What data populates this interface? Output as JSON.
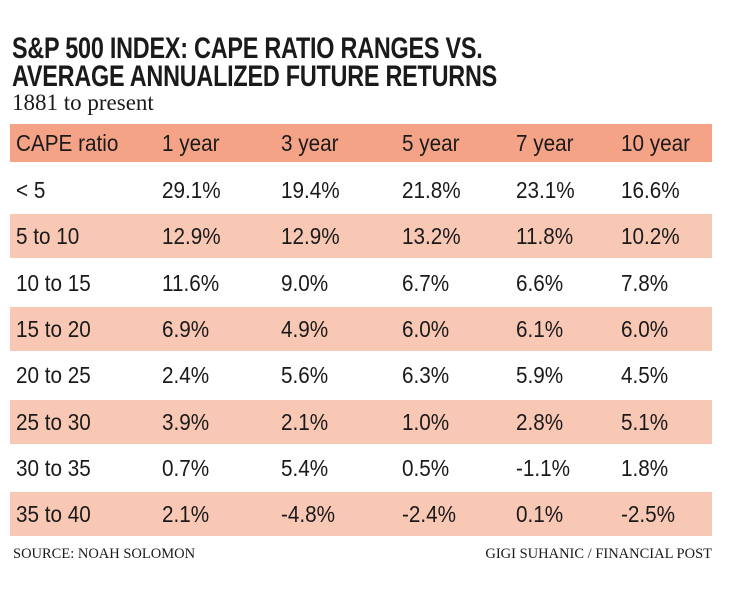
{
  "header": {
    "title_lines": [
      "S&P 500 INDEX: CAPE RATIO RANGES VS.",
      "AVERAGE ANNUALIZED FUTURE RETURNS"
    ],
    "subtitle": "1881 to present"
  },
  "table": {
    "columns": [
      "CAPE ratio",
      "1 year",
      "3 year",
      "5 year",
      "7 year",
      "10 year"
    ],
    "rows": [
      [
        "< 5",
        "29.1%",
        "19.4%",
        "21.8%",
        "23.1%",
        "16.6%"
      ],
      [
        "5 to 10",
        "12.9%",
        "12.9%",
        "13.2%",
        "11.8%",
        "10.2%"
      ],
      [
        "10 to 15",
        "11.6%",
        "9.0%",
        "6.7%",
        "6.6%",
        "7.8%"
      ],
      [
        "15 to 20",
        "6.9%",
        "4.9%",
        "6.0%",
        "6.1%",
        "6.0%"
      ],
      [
        "20 to 25",
        "2.4%",
        "5.6%",
        "6.3%",
        "5.9%",
        "4.5%"
      ],
      [
        "25 to 30",
        "3.9%",
        "2.1%",
        "1.0%",
        "2.8%",
        "5.1%"
      ],
      [
        "30 to 35",
        "0.7%",
        "5.4%",
        "0.5%",
        "-1.1%",
        "1.8%"
      ],
      [
        "35 to 40",
        "2.1%",
        "-4.8%",
        "-2.4%",
        "0.1%",
        "-2.5%"
      ]
    ]
  },
  "footer": {
    "source": "SOURCE: NOAH SOLOMON",
    "credit": "GIGI SUHANIC / FINANCIAL POST"
  }
}
